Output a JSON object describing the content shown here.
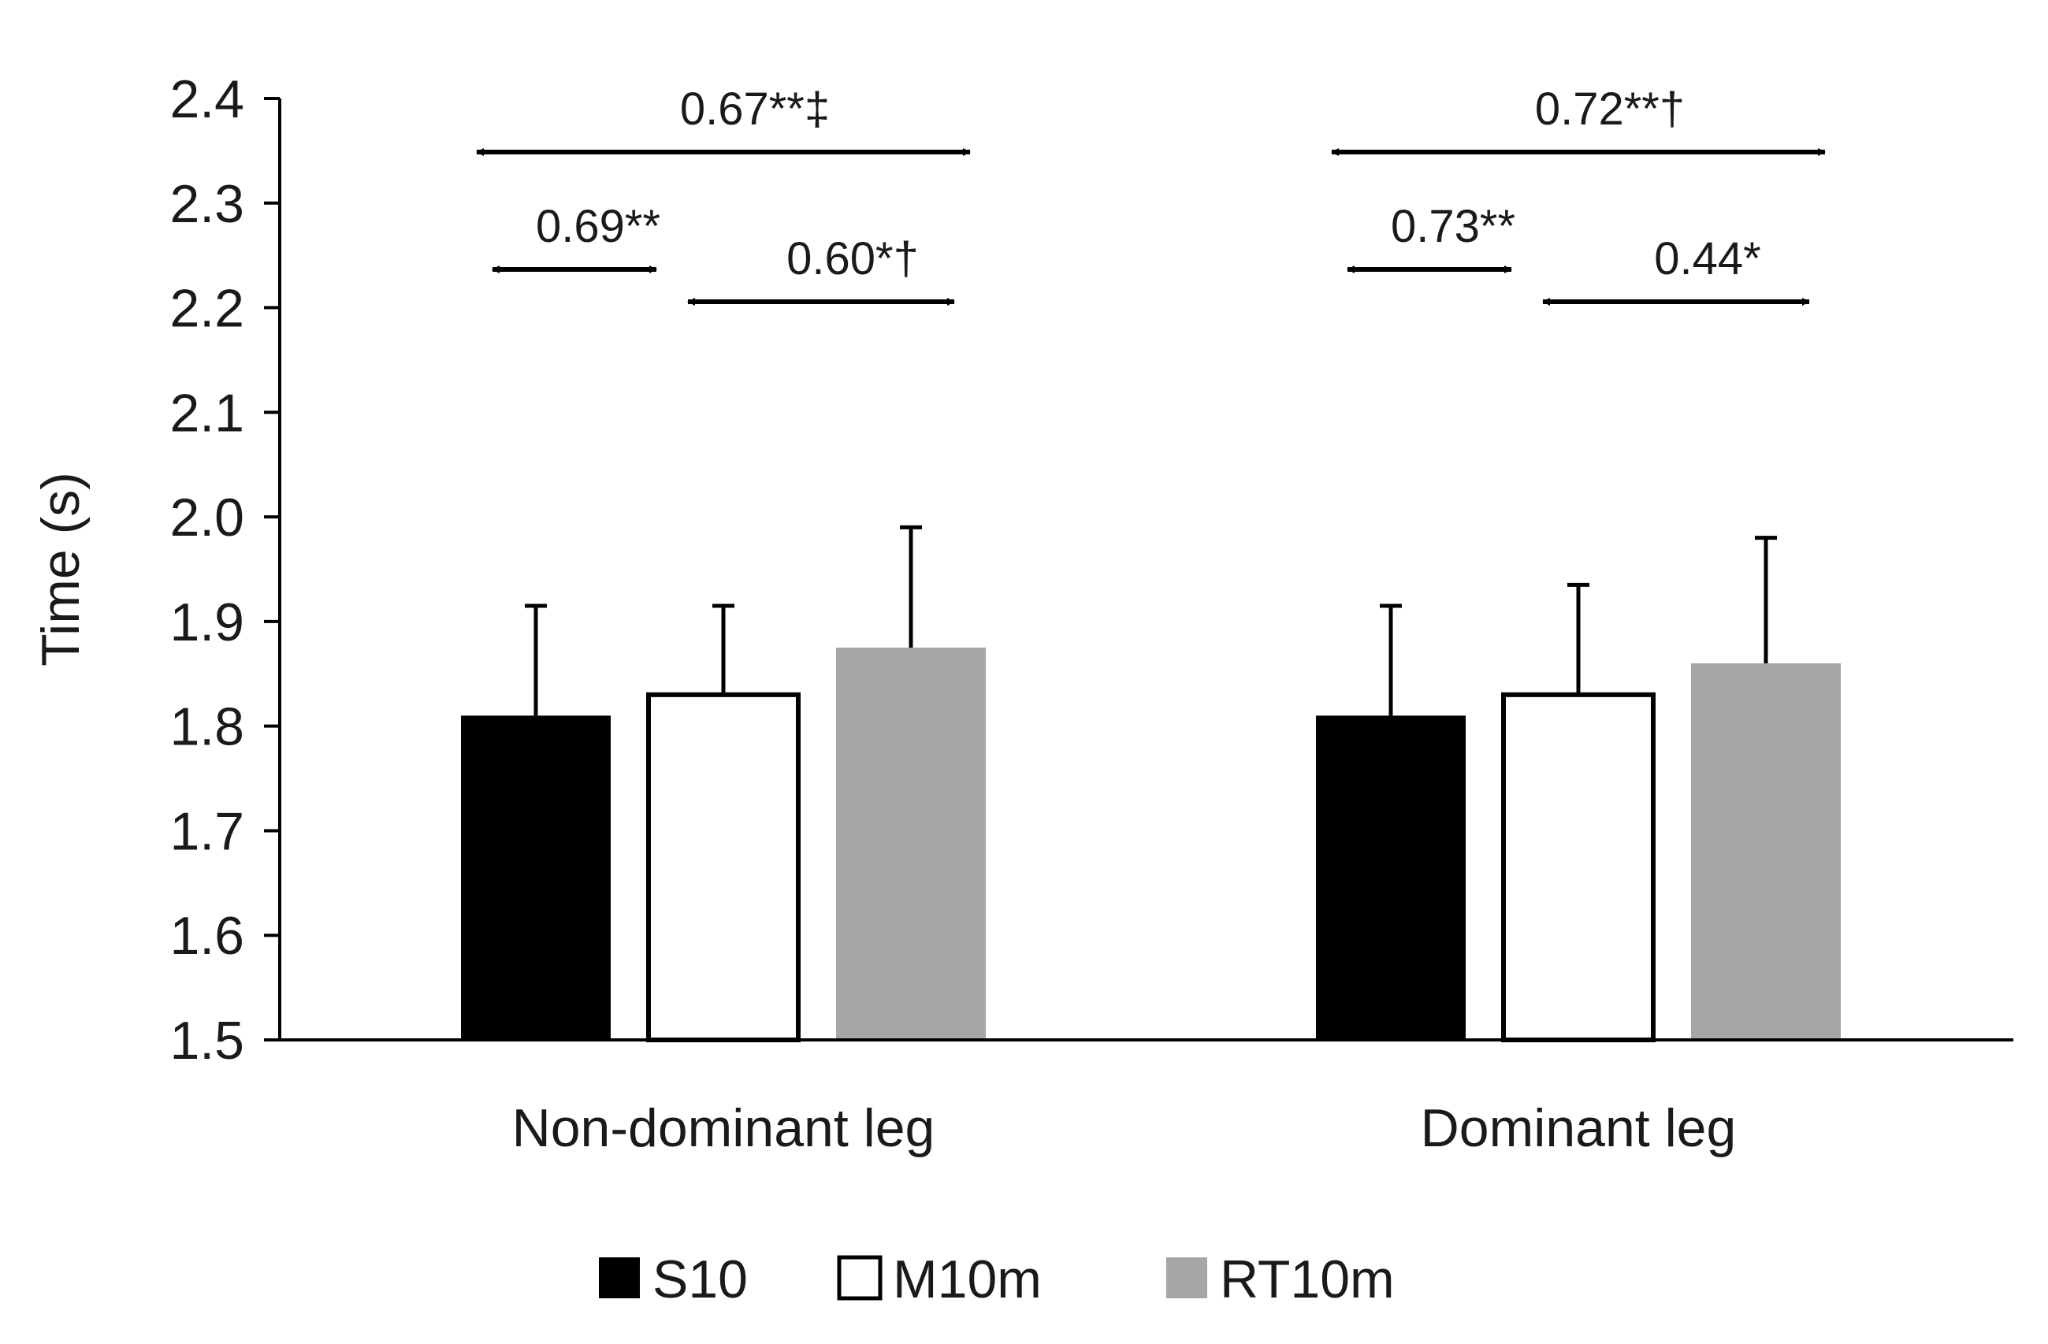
{
  "chart_data": {
    "type": "bar",
    "title": "",
    "xlabel": "",
    "ylabel": "Time (s)",
    "ylim": [
      1.5,
      2.4
    ],
    "yticks": [
      "1.5",
      "1.6",
      "1.7",
      "1.8",
      "1.9",
      "2.0",
      "2.1",
      "2.2",
      "2.3",
      "2.4"
    ],
    "grid": false,
    "legend_position": "bottom",
    "categories": [
      "Non-dominant leg",
      "Dominant leg"
    ],
    "series": [
      {
        "name": "S10",
        "color": "#000000",
        "fill": "#000000",
        "values": [
          1.81,
          1.81
        ],
        "errors": [
          0.105,
          0.105
        ]
      },
      {
        "name": "M10m",
        "color": "#000000",
        "fill": "#ffffff",
        "values": [
          1.83,
          1.83
        ],
        "errors": [
          0.085,
          0.105
        ]
      },
      {
        "name": "RT10m",
        "color": "#a6a6a6",
        "fill": "#a6a6a6",
        "values": [
          1.875,
          1.86
        ],
        "errors": [
          0.115,
          0.12
        ]
      }
    ],
    "annotations": [
      {
        "category": 0,
        "from": "S10",
        "to": "RT10m",
        "label": "0.67**‡",
        "level": 2
      },
      {
        "category": 0,
        "from": "S10",
        "to": "M10m",
        "label": "0.69**",
        "level": 1
      },
      {
        "category": 0,
        "from": "M10m",
        "to": "RT10m",
        "label": "0.60*†",
        "level": 0
      },
      {
        "category": 1,
        "from": "S10",
        "to": "RT10m",
        "label": "0.72**†",
        "level": 2
      },
      {
        "category": 1,
        "from": "S10",
        "to": "M10m",
        "label": "0.73**",
        "level": 1
      },
      {
        "category": 1,
        "from": "M10m",
        "to": "RT10m",
        "label": "0.44*",
        "level": 0
      }
    ]
  }
}
